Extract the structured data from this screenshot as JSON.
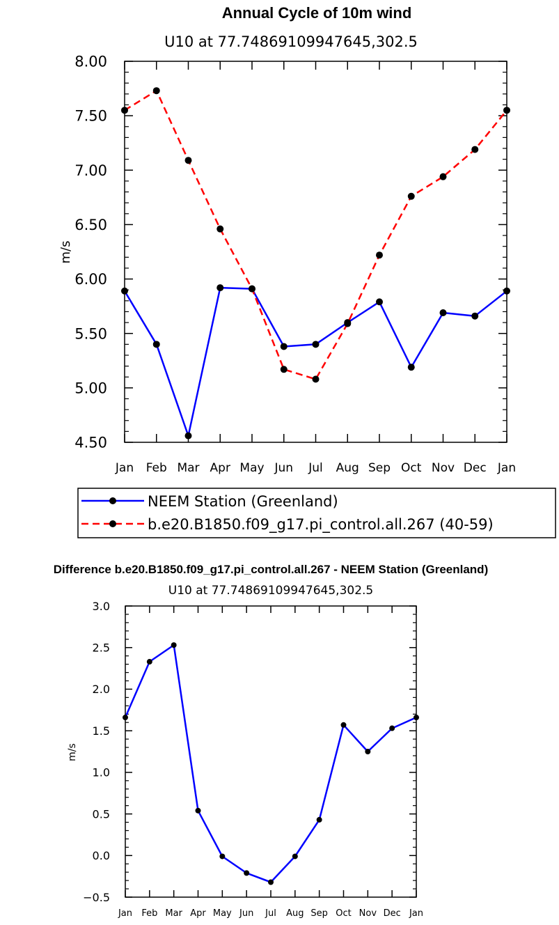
{
  "chart_data": [
    {
      "type": "line",
      "title": "Annual Cycle of 10m wind",
      "subtitle": "U10 at 77.74869109947645,302.5",
      "xlabel": "",
      "ylabel": "m/s",
      "ylim": [
        4.5,
        8.0
      ],
      "yticks": [
        "4.50",
        "5.00",
        "5.50",
        "6.00",
        "6.50",
        "7.00",
        "7.50",
        "8.00"
      ],
      "ytick_values": [
        4.5,
        5.0,
        5.5,
        6.0,
        6.5,
        7.0,
        7.5,
        8.0
      ],
      "categories": [
        "Jan",
        "Feb",
        "Mar",
        "Apr",
        "May",
        "Jun",
        "Jul",
        "Aug",
        "Sep",
        "Oct",
        "Nov",
        "Dec",
        "Jan"
      ],
      "series": [
        {
          "name": "NEEM Station (Greenland)",
          "color": "#0000ff",
          "dash": "solid",
          "values": [
            5.89,
            5.4,
            4.56,
            5.92,
            5.91,
            5.38,
            5.4,
            5.6,
            5.79,
            5.19,
            5.69,
            5.66,
            5.89
          ]
        },
        {
          "name": "b.e20.B1850.f09_g17.pi_control.all.267 (40-59)",
          "color": "#ff0000",
          "dash": "dashed",
          "values": [
            7.55,
            7.73,
            7.09,
            6.46,
            5.91,
            5.17,
            5.08,
            5.59,
            6.22,
            6.76,
            6.94,
            7.19,
            7.55
          ]
        }
      ],
      "legend": "below"
    },
    {
      "type": "line",
      "title": "Difference b.e20.B1850.f09_g17.pi_control.all.267 - NEEM Station (Greenland)",
      "subtitle": "U10 at 77.74869109947645,302.5",
      "xlabel": "",
      "ylabel": "m/s",
      "ylim": [
        -0.5,
        3.0
      ],
      "yticks": [
        "−0.5",
        "0.0",
        "0.5",
        "1.0",
        "1.5",
        "2.0",
        "2.5",
        "3.0"
      ],
      "ytick_values": [
        -0.5,
        0.0,
        0.5,
        1.0,
        1.5,
        2.0,
        2.5,
        3.0
      ],
      "categories": [
        "Jan",
        "Feb",
        "Mar",
        "Apr",
        "May",
        "Jun",
        "Jul",
        "Aug",
        "Sep",
        "Oct",
        "Nov",
        "Dec",
        "Jan"
      ],
      "series": [
        {
          "name": "Difference",
          "color": "#0000ff",
          "dash": "solid",
          "values": [
            1.66,
            2.33,
            2.53,
            0.54,
            -0.01,
            -0.21,
            -0.32,
            -0.01,
            0.43,
            1.57,
            1.25,
            1.53,
            1.66
          ]
        }
      ]
    }
  ]
}
